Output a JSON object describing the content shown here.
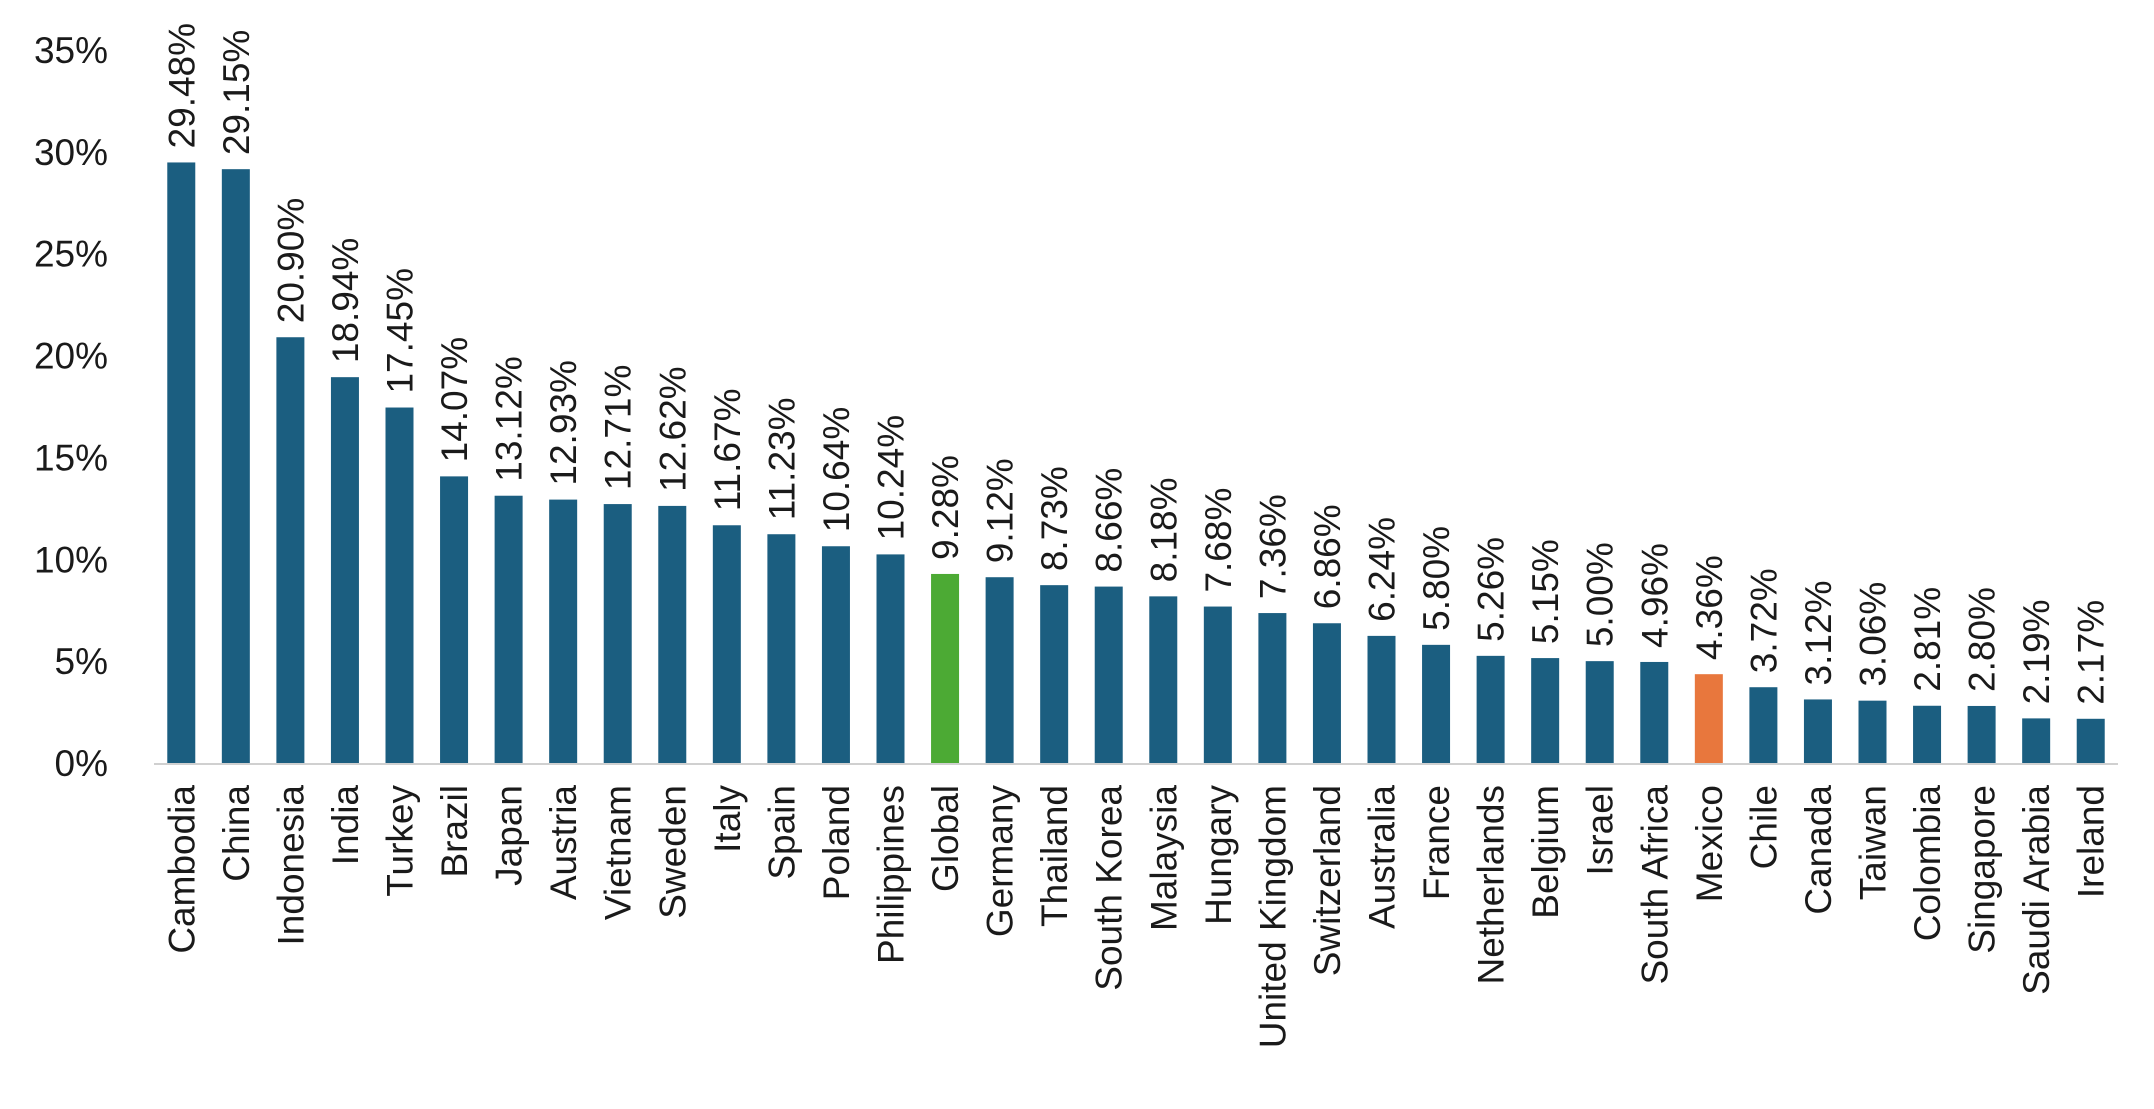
{
  "chart_data": {
    "type": "bar",
    "title": "",
    "xlabel": "",
    "ylabel": "",
    "ylim": [
      0,
      35
    ],
    "y_ticks": [
      0,
      5,
      10,
      15,
      20,
      25,
      30,
      35
    ],
    "y_tick_format": "percent",
    "grid": false,
    "legend": "none",
    "colors": {
      "default": "#1b5e80",
      "Global": "#4caa34",
      "Mexico": "#e8773d"
    },
    "categories": [
      "Cambodia",
      "China",
      "Indonesia",
      "India",
      "Turkey",
      "Brazil",
      "Japan",
      "Austria",
      "Vietnam",
      "Sweden",
      "Italy",
      "Spain",
      "Poland",
      "Philippines",
      "Global",
      "Germany",
      "Thailand",
      "South Korea",
      "Malaysia",
      "Hungary",
      "United Kingdom",
      "Switzerland",
      "Australia",
      "France",
      "Netherlands",
      "Belgium",
      "Israel",
      "South Africa",
      "Mexico",
      "Chile",
      "Canada",
      "Taiwan",
      "Colombia",
      "Singapore",
      "Saudi Arabia",
      "Ireland"
    ],
    "values": [
      29.48,
      29.15,
      20.9,
      18.94,
      17.45,
      14.07,
      13.12,
      12.93,
      12.71,
      12.62,
      11.67,
      11.23,
      10.64,
      10.24,
      9.28,
      9.12,
      8.73,
      8.66,
      8.18,
      7.68,
      7.36,
      6.86,
      6.24,
      5.8,
      5.26,
      5.15,
      5.0,
      4.96,
      4.36,
      3.72,
      3.12,
      3.06,
      2.81,
      2.8,
      2.19,
      2.17
    ],
    "data_labels": [
      "29.48%",
      "29.15%",
      "20.90%",
      "18.94%",
      "17.45%",
      "14.07%",
      "13.12%",
      "12.93%",
      "12.71%",
      "12.62%",
      "11.67%",
      "11.23%",
      "10.64%",
      "10.24%",
      "9.28%",
      "9.12%",
      "8.73%",
      "8.66%",
      "8.18%",
      "7.68%",
      "7.36%",
      "6.86%",
      "6.24%",
      "5.80%",
      "5.26%",
      "5.15%",
      "5.00%",
      "4.96%",
      "4.36%",
      "3.72%",
      "3.12%",
      "3.06%",
      "2.81%",
      "2.80%",
      "2.19%",
      "2.17%"
    ]
  }
}
